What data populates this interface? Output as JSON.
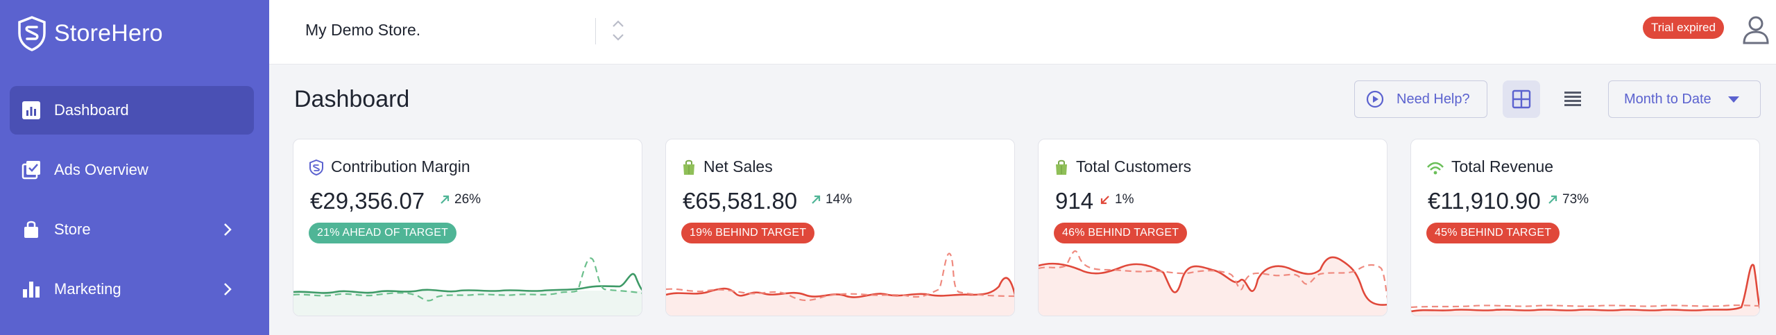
{
  "brand": {
    "name": "StoreHero"
  },
  "sidebar": {
    "items": [
      {
        "label": "Dashboard",
        "icon": "chart-bar-icon",
        "active": true
      },
      {
        "label": "Ads Overview",
        "icon": "check-square-icon",
        "active": false
      },
      {
        "label": "Store",
        "icon": "shopping-bag-icon",
        "active": false,
        "expandable": true
      },
      {
        "label": "Marketing",
        "icon": "bar-chart-icon",
        "active": false,
        "expandable": true
      }
    ]
  },
  "header": {
    "store_name": "My Demo Store.",
    "trial_label": "Trial expired"
  },
  "main": {
    "title": "Dashboard",
    "help_label": "Need Help?",
    "period_label": "Month to Date"
  },
  "cards": [
    {
      "title": "Contribution Margin",
      "icon": "storehero-shield-icon",
      "value": "€29,356.07",
      "change": "26%",
      "direction": "up",
      "target": "21% AHEAD OF TARGET",
      "target_status": "ahead",
      "color": "#3e9a67"
    },
    {
      "title": "Net Sales",
      "icon": "shopify-bag-icon",
      "value": "€65,581.80",
      "change": "14%",
      "direction": "up",
      "target": "19% BEHIND TARGET",
      "target_status": "behind",
      "color": "#e0483a"
    },
    {
      "title": "Total Customers",
      "icon": "shopify-bag-icon",
      "value": "914",
      "change": "1%",
      "direction": "down",
      "target": "46% BEHIND TARGET",
      "target_status": "behind",
      "color": "#e0483a"
    },
    {
      "title": "Total Revenue",
      "icon": "signal-icon",
      "value": "€11,910.90",
      "change": "73%",
      "direction": "up",
      "target": "45% BEHIND TARGET",
      "target_status": "behind",
      "color": "#e0483a"
    }
  ],
  "colors": {
    "sidebar": "#5b62cf",
    "sidebar_active": "#4a50b4",
    "accent": "#5b62cf",
    "positive": "#4fb596",
    "negative": "#e0483a"
  }
}
